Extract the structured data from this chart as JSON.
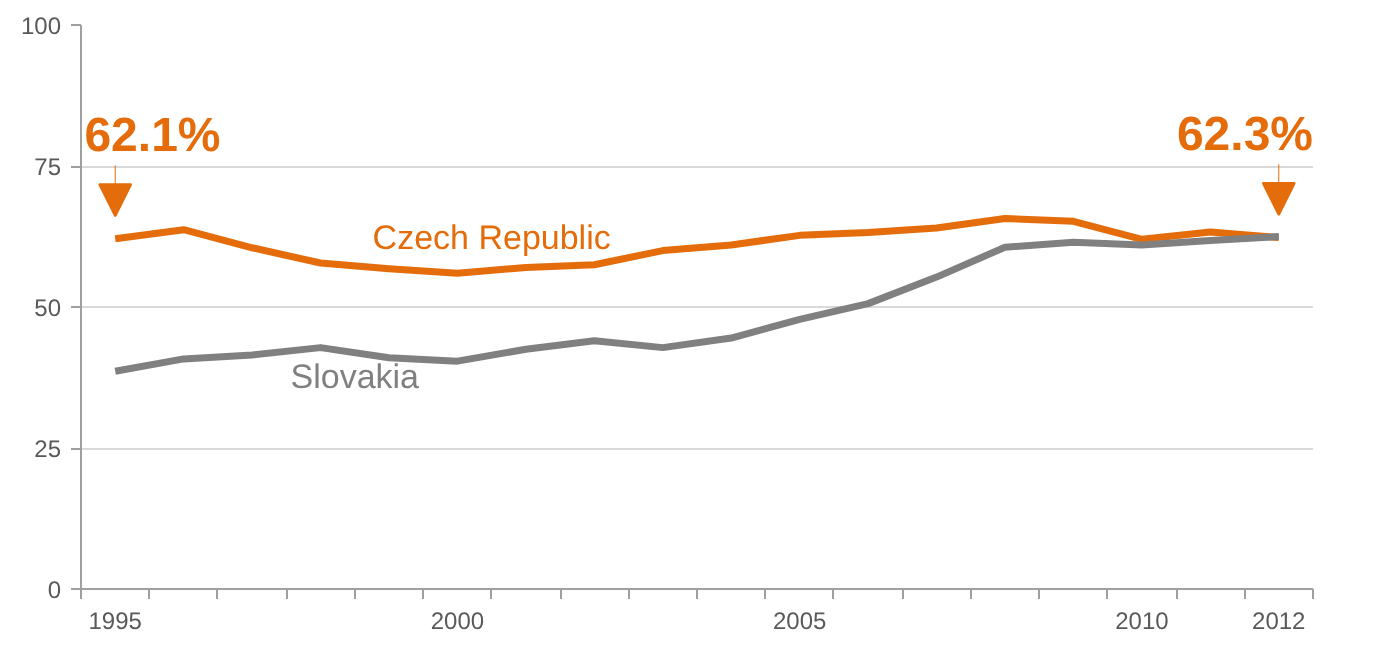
{
  "chart_data": {
    "type": "line",
    "categories": [
      "1995",
      null,
      null,
      null,
      null,
      "2000",
      null,
      null,
      null,
      null,
      "2005",
      null,
      null,
      null,
      null,
      "2010",
      null,
      "2012"
    ],
    "series": [
      {
        "name": "Czech Republic",
        "color": "#e46c0a",
        "values": [
          62.1,
          63.7,
          60.5,
          57.8,
          56.8,
          56,
          57,
          57.5,
          60,
          61,
          62.7,
          63.2,
          64,
          65.7,
          65.2,
          62,
          63.3,
          62.3
        ]
      },
      {
        "name": "Slovakia",
        "color": "#808080",
        "values": [
          38.6,
          40.8,
          41.5,
          42.8,
          41,
          40.4,
          42.5,
          44,
          42.8,
          44.5,
          47.8,
          50.6,
          55.3,
          60.6,
          61.5,
          61,
          61.8,
          62.5
        ]
      }
    ],
    "ylim": [
      0,
      100
    ],
    "yticks": [
      0,
      25,
      50,
      75,
      100
    ],
    "grid": "y",
    "marker": "none",
    "line_style": "solid",
    "annotations": [
      {
        "text": "62.1%",
        "x": "1995",
        "y": 62.1
      },
      {
        "text": "62.3%",
        "x": "2012",
        "y": 62.3
      }
    ]
  }
}
